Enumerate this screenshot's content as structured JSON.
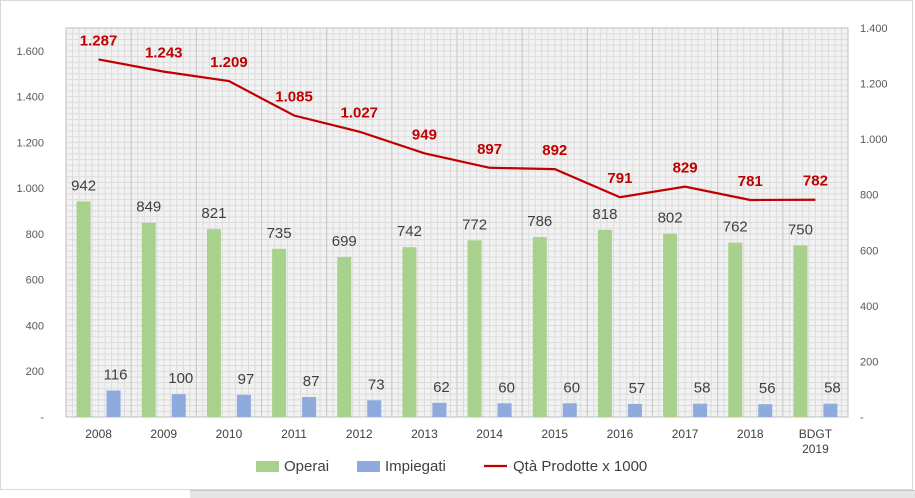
{
  "chart_data": {
    "type": "bar",
    "categories": [
      "2008",
      "2009",
      "2010",
      "2011",
      "2012",
      "2013",
      "2014",
      "2015",
      "2016",
      "2017",
      "2018",
      "BDGT 2019"
    ],
    "series": [
      {
        "name": "Operai",
        "type": "bar",
        "axis": "left",
        "color": "#a9d18e",
        "values": [
          942,
          849,
          821,
          735,
          699,
          742,
          772,
          786,
          818,
          802,
          762,
          750
        ],
        "labels": [
          "942",
          "849",
          "821",
          "735",
          "699",
          "742",
          "772",
          "786",
          "818",
          "802",
          "762",
          "750"
        ]
      },
      {
        "name": "Impiegati",
        "type": "bar",
        "axis": "left",
        "color": "#8faadc",
        "values": [
          116,
          100,
          97,
          87,
          73,
          62,
          60,
          60,
          57,
          58,
          56,
          58
        ],
        "labels": [
          "116",
          "100",
          "97",
          "87",
          "73",
          "62",
          "60",
          "60",
          "57",
          "58",
          "56",
          "58"
        ]
      },
      {
        "name": "Qtà Prodotte x 1000",
        "type": "line",
        "axis": "right",
        "color": "#c00000",
        "values": [
          1287,
          1243,
          1209,
          1085,
          1027,
          949,
          897,
          892,
          791,
          829,
          781,
          782
        ],
        "labels": [
          "1.287",
          "1.243",
          "1.209",
          "1.085",
          "1.027",
          "949",
          "897",
          "892",
          "791",
          "829",
          "781",
          "782"
        ]
      }
    ],
    "left_axis": {
      "ylim": [
        0,
        1700
      ],
      "ticks": [
        0,
        200,
        400,
        600,
        800,
        1000,
        1200,
        1400,
        1600
      ],
      "tick_labels": [
        "-",
        "200",
        "400",
        "600",
        "800",
        "1.000",
        "1.200",
        "1.400",
        "1.600"
      ]
    },
    "right_axis": {
      "ylim": [
        0,
        1400
      ],
      "ticks": [
        0,
        200,
        400,
        600,
        800,
        1000,
        1200,
        1400
      ],
      "tick_labels": [
        "-",
        "200",
        "400",
        "600",
        "800",
        "1.000",
        "1.200",
        "1.400"
      ]
    },
    "grid": true,
    "legend_position": "bottom"
  }
}
